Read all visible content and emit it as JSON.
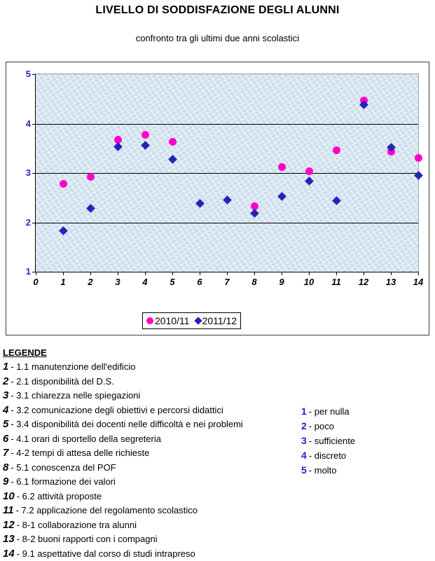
{
  "header": {
    "title": "LIVELLO DI SODDISFAZIONE DEGLI ALUNNI",
    "subtitle": "confronto tra gli ultimi due anni scolastici"
  },
  "chart_data": {
    "type": "scatter",
    "x": [
      1,
      2,
      3,
      4,
      5,
      6,
      7,
      8,
      9,
      10,
      11,
      12,
      13,
      14
    ],
    "series": [
      {
        "name": "2010/11",
        "marker": "circle",
        "color": "#ff00cc",
        "values": [
          2.78,
          2.92,
          3.68,
          3.77,
          3.63,
          null,
          null,
          2.33,
          3.12,
          3.03,
          3.46,
          4.47,
          3.43,
          3.31
        ]
      },
      {
        "name": "2011/12",
        "marker": "diamond",
        "color": "#2424b8",
        "values": [
          1.83,
          2.28,
          3.53,
          3.56,
          3.28,
          2.39,
          2.46,
          2.18,
          2.52,
          2.83,
          2.44,
          4.39,
          3.52,
          2.95
        ]
      }
    ],
    "xlim": [
      0,
      14
    ],
    "ylim": [
      1,
      5
    ],
    "x_ticks": [
      0,
      1,
      2,
      3,
      4,
      5,
      6,
      7,
      8,
      9,
      10,
      11,
      12,
      13,
      14
    ],
    "y_ticks": [
      1,
      2,
      3,
      4,
      5
    ],
    "grid": "horizontal-at-integers",
    "legend_position": "bottom-center-inside-frame",
    "plot_bg": "#d9e6f2",
    "title": "",
    "xlabel": "",
    "ylabel": ""
  },
  "legend_section": {
    "heading": "LEGENDE",
    "items": [
      {
        "num": "1",
        "text": "- 1.1 manutenzione dell'edificio"
      },
      {
        "num": "2",
        "text": "- 2.1 disponibilità del D.S."
      },
      {
        "num": "3",
        "text": "- 3.1 chiarezza nelle spiegazioni"
      },
      {
        "num": "4",
        "text": "- 3.2 comunicazione degli obiettivi e percorsi didattici"
      },
      {
        "num": "5",
        "text": "- 3.4 disponibilità dei docenti nelle difficoltà e nei problemi"
      },
      {
        "num": "6",
        "text": "- 4.1 orari di sportello della segreteria"
      },
      {
        "num": "7",
        "text": "- 4-2 tempi di attesa delle richieste"
      },
      {
        "num": "8",
        "text": "- 5.1 conoscenza del POF"
      },
      {
        "num": "9",
        "text": "- 6.1 formazione dei valori"
      },
      {
        "num": "10",
        "text": "-  6.2 attività proposte"
      },
      {
        "num": "11",
        "text": "- 7.2 applicazione del regolamento scolastico"
      },
      {
        "num": "12",
        "text": "- 8-1 collaborazione tra alunni"
      },
      {
        "num": "13",
        "text": "- 8-2 buoni rapporti con i compagni"
      },
      {
        "num": "14",
        "text": "- 9.1 aspettative dal corso di studi intrapreso"
      }
    ],
    "scale": [
      {
        "num": "1",
        "text": "- per nulla"
      },
      {
        "num": "2",
        "text": "- poco"
      },
      {
        "num": "3",
        "text": "- sufficiente"
      },
      {
        "num": "4",
        "text": "- discreto"
      },
      {
        "num": "5",
        "text": "- molto"
      }
    ]
  },
  "colors": {
    "axis_value_labels": "#2929c8",
    "scale_numbers": "#2222cc",
    "gridline": "#000000",
    "plot_background": "#d9e6f2"
  }
}
